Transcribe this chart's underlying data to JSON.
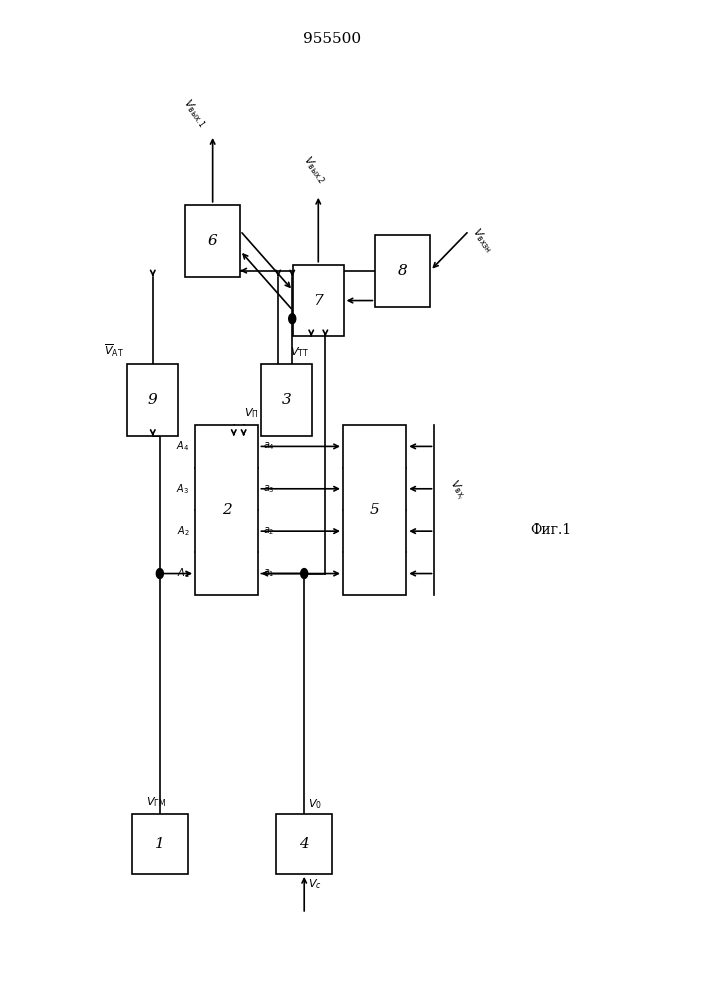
{
  "title": "955500",
  "fig_label": "Фиг.1",
  "background_color": "#ffffff",
  "lw": 1.2,
  "boxes": {
    "1": [
      0.225,
      0.155,
      0.08,
      0.06
    ],
    "2": [
      0.32,
      0.49,
      0.09,
      0.17
    ],
    "3": [
      0.405,
      0.6,
      0.072,
      0.072
    ],
    "4": [
      0.43,
      0.155,
      0.08,
      0.06
    ],
    "5": [
      0.53,
      0.49,
      0.09,
      0.17
    ],
    "6": [
      0.3,
      0.76,
      0.078,
      0.072
    ],
    "7": [
      0.45,
      0.7,
      0.072,
      0.072
    ],
    "8": [
      0.57,
      0.73,
      0.078,
      0.072
    ],
    "9": [
      0.215,
      0.6,
      0.072,
      0.072
    ]
  }
}
